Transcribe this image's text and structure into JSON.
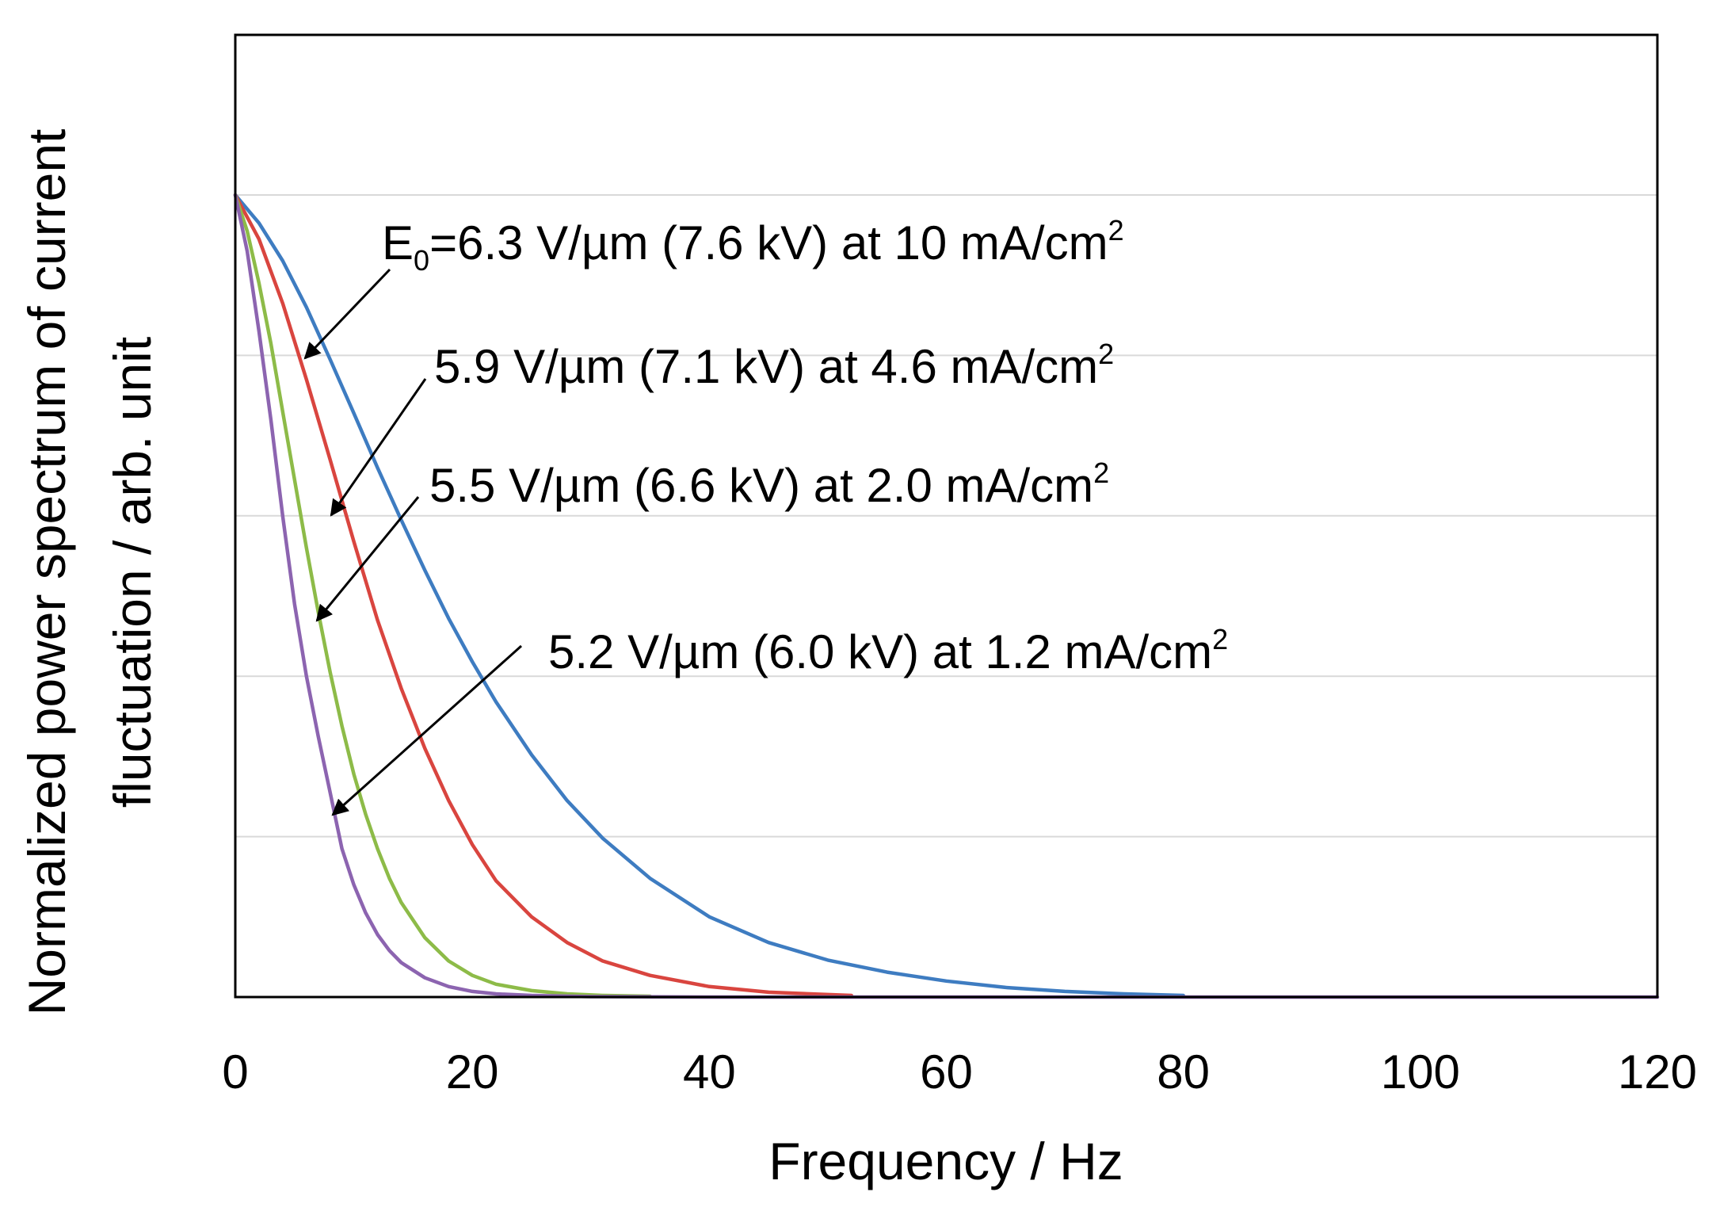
{
  "chart_data": {
    "type": "line",
    "title": "",
    "xlabel": "Frequency  / Hz",
    "ylabel_line1": "Normalized  power spectrum of current",
    "ylabel_line2": "fluctuation / arb. unit",
    "xlim": [
      0,
      120
    ],
    "ylim": [
      0,
      1
    ],
    "x_ticks": [
      0,
      20,
      40,
      60,
      80,
      100,
      120
    ],
    "x_tick_labels": [
      "0",
      "20",
      "40",
      "60",
      "80",
      "100",
      "120"
    ],
    "y_gridlines": [
      0.2,
      0.4,
      0.6,
      0.8,
      1.0
    ],
    "grid": "horizontal",
    "legend": "none",
    "series": [
      {
        "name": "E0=6.3 V/µm (7.6 kV) at 10 mA/cm2",
        "color": "#3e7cc1",
        "x": [
          0,
          2,
          4,
          6,
          8,
          10,
          12,
          14,
          16,
          18,
          20,
          22,
          25,
          28,
          31,
          35,
          40,
          45,
          50,
          55,
          60,
          65,
          70,
          75,
          80
        ],
        "y": [
          1.0,
          0.965,
          0.918,
          0.86,
          0.795,
          0.728,
          0.66,
          0.595,
          0.532,
          0.472,
          0.418,
          0.368,
          0.302,
          0.245,
          0.198,
          0.148,
          0.1,
          0.068,
          0.046,
          0.031,
          0.02,
          0.012,
          0.007,
          0.004,
          0.002
        ]
      },
      {
        "name": "5.9 V/µm (7.1 kV) at 4.6 mA/cm2",
        "color": "#d9453f",
        "x": [
          0,
          2,
          4,
          6,
          8,
          10,
          12,
          14,
          16,
          18,
          20,
          22,
          25,
          28,
          31,
          35,
          40,
          45,
          52
        ],
        "y": [
          1.0,
          0.945,
          0.865,
          0.77,
          0.67,
          0.568,
          0.47,
          0.385,
          0.31,
          0.245,
          0.19,
          0.145,
          0.1,
          0.068,
          0.045,
          0.027,
          0.013,
          0.006,
          0.002
        ]
      },
      {
        "name": "5.5 V/µm (6.6 kV) at 2.0 mA/cm2",
        "color": "#8dbb48",
        "x": [
          0,
          1,
          2,
          3,
          4,
          5,
          6,
          7,
          8,
          9,
          10,
          11,
          12,
          13,
          14,
          16,
          18,
          20,
          22,
          25,
          28,
          31,
          35
        ],
        "y": [
          1.0,
          0.955,
          0.89,
          0.815,
          0.73,
          0.645,
          0.56,
          0.48,
          0.405,
          0.338,
          0.278,
          0.228,
          0.185,
          0.148,
          0.118,
          0.074,
          0.045,
          0.027,
          0.016,
          0.008,
          0.004,
          0.002,
          0.001
        ]
      },
      {
        "name": "5.2 V/µm (6.0 kV) at 1.2 mA/cm2",
        "color": "#8c64b0",
        "x": [
          0,
          1,
          2,
          3,
          4,
          5,
          6,
          7,
          8,
          9,
          10,
          11,
          12,
          13,
          14,
          16,
          18,
          20,
          22,
          25,
          30,
          40,
          60,
          80,
          100,
          120
        ],
        "y": [
          1.0,
          0.93,
          0.83,
          0.72,
          0.6,
          0.49,
          0.4,
          0.325,
          0.255,
          0.185,
          0.14,
          0.105,
          0.078,
          0.058,
          0.043,
          0.024,
          0.013,
          0.007,
          0.004,
          0.002,
          0.0005,
          0.0,
          0.0,
          0.0,
          0.0,
          0.0
        ]
      }
    ],
    "annotations": [
      {
        "main": "=6.3 V/µm (7.6 kV) at 10 mA/cm",
        "prefix": "E",
        "sub": "0",
        "sup": "2",
        "points_to_series": 0
      },
      {
        "main": "5.9 V/µm (7.1 kV) at 4.6 mA/cm",
        "sup": "2",
        "points_to_series": 1
      },
      {
        "main": "5.5 V/µm (6.6 kV) at 2.0 mA/cm",
        "sup": "2",
        "points_to_series": 2
      },
      {
        "main": "5.2 V/µm (6.0 kV) at 1.2 mA/cm",
        "sup": "2",
        "points_to_series": 3
      }
    ]
  }
}
